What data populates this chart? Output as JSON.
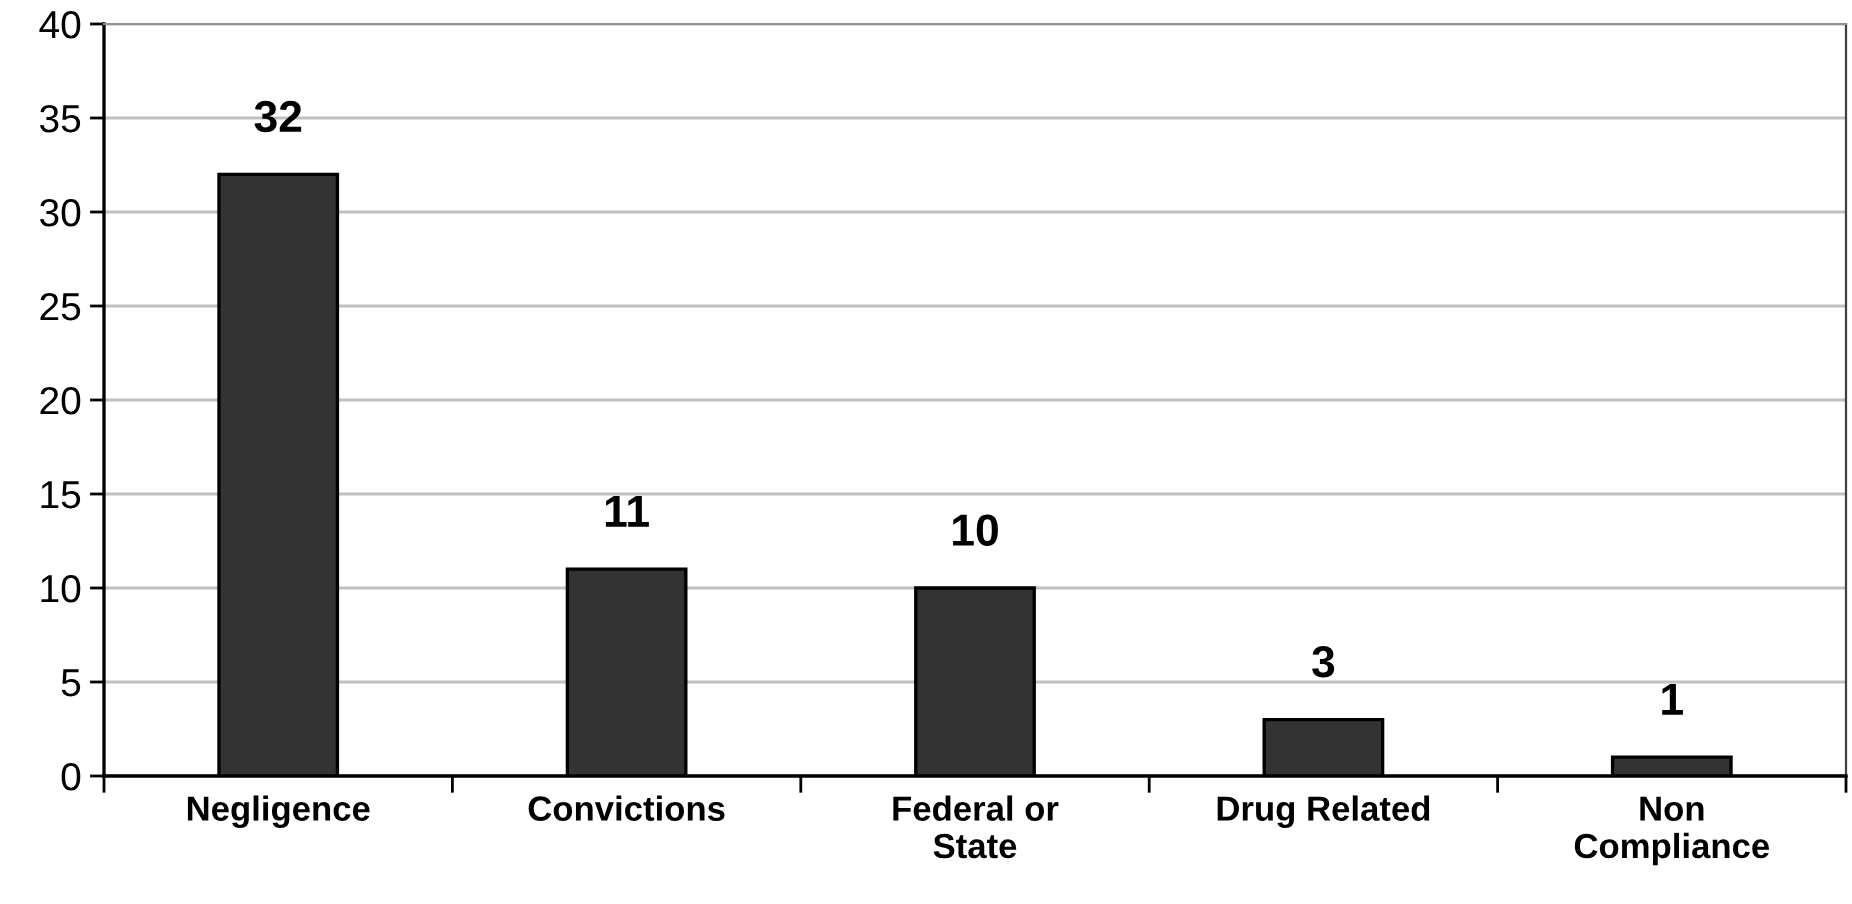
{
  "chart_data": {
    "type": "bar",
    "categories": [
      "Negligence",
      "Convictions",
      "Federal or\nState",
      "Drug Related",
      "Non\nCompliance"
    ],
    "values": [
      32,
      11,
      10,
      3,
      1
    ],
    "color": "#333333",
    "ylim": [
      0,
      40
    ],
    "yticks": [
      0,
      5,
      10,
      15,
      20,
      25,
      30,
      35,
      40
    ],
    "grid": "y",
    "data_labels": true
  }
}
